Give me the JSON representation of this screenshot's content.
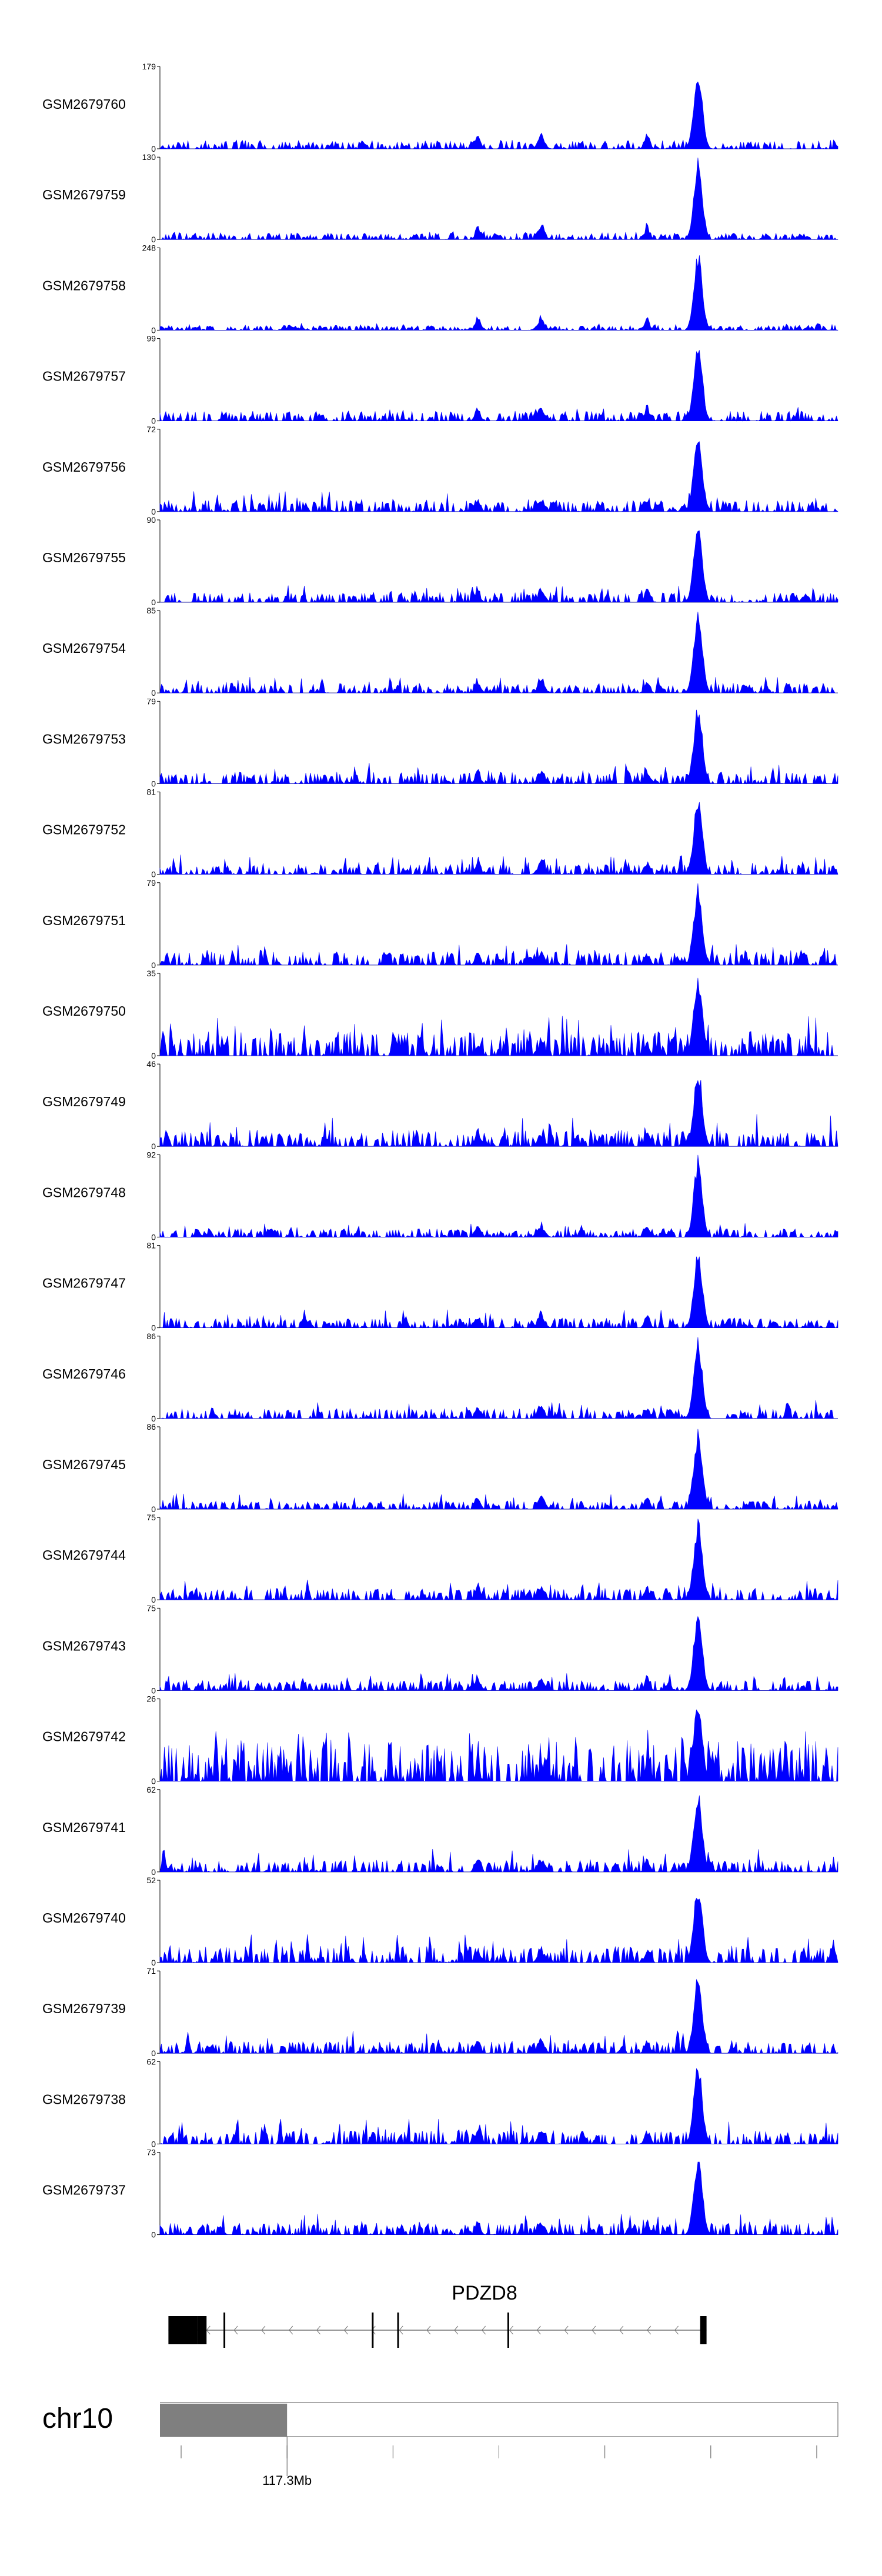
{
  "chart_data": {
    "type": "area",
    "title": "",
    "xlabel": "",
    "ylabel": "",
    "grid": false,
    "legend": "none",
    "x_range_mb": [
      116.95,
      118.55
    ],
    "series_color": "#0000ff",
    "peaks": [
      {
        "x_mb": 118.22,
        "width_mb": 0.01
      },
      {
        "x_mb": 117.85,
        "width_mb": 0.008
      },
      {
        "x_mb": 117.7,
        "width_mb": 0.006
      },
      {
        "x_mb": 118.1,
        "width_mb": 0.006
      }
    ],
    "series": [
      {
        "name": "GSM2679760",
        "ymax_label": "179",
        "ymin_label": "0",
        "ylim": [
          0,
          179
        ],
        "peak_value": 179,
        "baseline": 0.05,
        "noise": 0.08,
        "seed": 1
      },
      {
        "name": "GSM2679759",
        "ymax_label": "130",
        "ymin_label": "0",
        "ylim": [
          0,
          130
        ],
        "peak_value": 130,
        "baseline": 0.04,
        "noise": 0.07,
        "seed": 2
      },
      {
        "name": "GSM2679758",
        "ymax_label": "248",
        "ymin_label": "0",
        "ylim": [
          0,
          248
        ],
        "peak_value": 248,
        "baseline": 0.03,
        "noise": 0.06,
        "seed": 3
      },
      {
        "name": "GSM2679757",
        "ymax_label": "99",
        "ymin_label": "0",
        "ylim": [
          0,
          99
        ],
        "peak_value": 99,
        "baseline": 0.06,
        "noise": 0.12,
        "seed": 4
      },
      {
        "name": "GSM2679756",
        "ymax_label": "72",
        "ymin_label": "0",
        "ylim": [
          0,
          72
        ],
        "peak_value": 72,
        "baseline": 0.07,
        "noise": 0.18,
        "seed": 5
      },
      {
        "name": "GSM2679755",
        "ymax_label": "90",
        "ymin_label": "0",
        "ylim": [
          0,
          90
        ],
        "peak_value": 90,
        "baseline": 0.06,
        "noise": 0.15,
        "seed": 6
      },
      {
        "name": "GSM2679754",
        "ymax_label": "85",
        "ymin_label": "0",
        "ylim": [
          0,
          85
        ],
        "peak_value": 85,
        "baseline": 0.06,
        "noise": 0.14,
        "seed": 7
      },
      {
        "name": "GSM2679753",
        "ymax_label": "79",
        "ymin_label": "0",
        "ylim": [
          0,
          79
        ],
        "peak_value": 79,
        "baseline": 0.07,
        "noise": 0.18,
        "seed": 8
      },
      {
        "name": "GSM2679752",
        "ymax_label": "81",
        "ymin_label": "0",
        "ylim": [
          0,
          81
        ],
        "peak_value": 81,
        "baseline": 0.06,
        "noise": 0.17,
        "seed": 9
      },
      {
        "name": "GSM2679751",
        "ymax_label": "79",
        "ymin_label": "0",
        "ylim": [
          0,
          79
        ],
        "peak_value": 79,
        "baseline": 0.08,
        "noise": 0.18,
        "seed": 10
      },
      {
        "name": "GSM2679750",
        "ymax_label": "35",
        "ymin_label": "0",
        "ylim": [
          0,
          35
        ],
        "peak_value": 35,
        "baseline": 0.15,
        "noise": 0.35,
        "seed": 11
      },
      {
        "name": "GSM2679749",
        "ymax_label": "46",
        "ymin_label": "0",
        "ylim": [
          0,
          46
        ],
        "peak_value": 46,
        "baseline": 0.1,
        "noise": 0.3,
        "seed": 12
      },
      {
        "name": "GSM2679748",
        "ymax_label": "92",
        "ymin_label": "0",
        "ylim": [
          0,
          92
        ],
        "peak_value": 92,
        "baseline": 0.05,
        "noise": 0.12,
        "seed": 13
      },
      {
        "name": "GSM2679747",
        "ymax_label": "81",
        "ymin_label": "0",
        "ylim": [
          0,
          81
        ],
        "peak_value": 81,
        "baseline": 0.06,
        "noise": 0.16,
        "seed": 14
      },
      {
        "name": "GSM2679746",
        "ymax_label": "86",
        "ymin_label": "0",
        "ylim": [
          0,
          86
        ],
        "peak_value": 86,
        "baseline": 0.06,
        "noise": 0.16,
        "seed": 15
      },
      {
        "name": "GSM2679745",
        "ymax_label": "86",
        "ymin_label": "0",
        "ylim": [
          0,
          86
        ],
        "peak_value": 86,
        "baseline": 0.05,
        "noise": 0.14,
        "seed": 16
      },
      {
        "name": "GSM2679744",
        "ymax_label": "75",
        "ymin_label": "0",
        "ylim": [
          0,
          75
        ],
        "peak_value": 75,
        "baseline": 0.07,
        "noise": 0.18,
        "seed": 17
      },
      {
        "name": "GSM2679743",
        "ymax_label": "75",
        "ymin_label": "0",
        "ylim": [
          0,
          75
        ],
        "peak_value": 75,
        "baseline": 0.06,
        "noise": 0.15,
        "seed": 18
      },
      {
        "name": "GSM2679742",
        "ymax_label": "26",
        "ymin_label": "0",
        "ylim": [
          0,
          26
        ],
        "peak_value": 26,
        "baseline": 0.25,
        "noise": 0.45,
        "seed": 19
      },
      {
        "name": "GSM2679741",
        "ymax_label": "62",
        "ymin_label": "0",
        "ylim": [
          0,
          62
        ],
        "peak_value": 62,
        "baseline": 0.07,
        "noise": 0.2,
        "seed": 20
      },
      {
        "name": "GSM2679740",
        "ymax_label": "52",
        "ymin_label": "0",
        "ylim": [
          0,
          52
        ],
        "peak_value": 52,
        "baseline": 0.1,
        "noise": 0.25,
        "seed": 21
      },
      {
        "name": "GSM2679739",
        "ymax_label": "71",
        "ymin_label": "0",
        "ylim": [
          0,
          71
        ],
        "peak_value": 71,
        "baseline": 0.07,
        "noise": 0.2,
        "seed": 22
      },
      {
        "name": "GSM2679738",
        "ymax_label": "62",
        "ymin_label": "0",
        "ylim": [
          0,
          62
        ],
        "peak_value": 62,
        "baseline": 0.08,
        "noise": 0.22,
        "seed": 23
      },
      {
        "name": "GSM2679737",
        "ymax_label": "73",
        "ymin_label": "0",
        "ylim": [
          0,
          73
        ],
        "peak_value": 73,
        "baseline": 0.07,
        "noise": 0.18,
        "seed": 24
      }
    ],
    "gene": {
      "name": "PDZD8",
      "strand": "-",
      "start_mb": 116.97,
      "end_mb": 118.24,
      "exons_mb": [
        {
          "start": 116.97,
          "end": 117.04,
          "thick": true
        },
        {
          "start": 117.04,
          "end": 117.06,
          "thick": true
        },
        {
          "start": 117.1,
          "end": 117.102,
          "thick": false
        },
        {
          "start": 117.45,
          "end": 117.452,
          "thick": false
        },
        {
          "start": 117.51,
          "end": 117.512,
          "thick": false
        },
        {
          "start": 117.77,
          "end": 117.772,
          "thick": false
        },
        {
          "start": 118.225,
          "end": 118.24,
          "thick": true
        }
      ]
    },
    "ideogram": {
      "chromosome": "chr10",
      "position_label": "117.3Mb",
      "region_mb": [
        116.95,
        117.25
      ],
      "tick_mb": [
        117.0,
        117.25,
        117.5,
        117.75,
        118.0,
        118.25,
        118.5
      ]
    }
  }
}
